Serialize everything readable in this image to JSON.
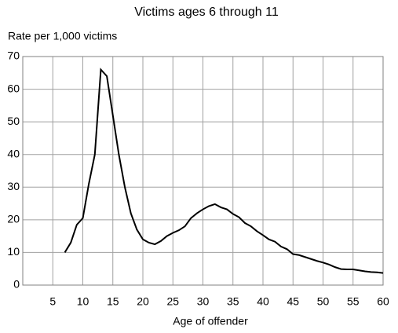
{
  "chart_data": {
    "type": "line",
    "title": "Victims ages 6 through 11",
    "y_label": "Rate per 1,000 victims",
    "x_label": "Age of offender",
    "series": [
      {
        "color": "#000000",
        "x": [
          7,
          8,
          9,
          10,
          11,
          12,
          13,
          14,
          15,
          16,
          17,
          18,
          19,
          20,
          21,
          22,
          23,
          24,
          25,
          26,
          27,
          28,
          29,
          30,
          31,
          32,
          33,
          34,
          35,
          36,
          37,
          38,
          39,
          40,
          41,
          42,
          43,
          44,
          45,
          46,
          47,
          48,
          49,
          50,
          51,
          52,
          53,
          54,
          55,
          56,
          57,
          58,
          59,
          60
        ],
        "values": [
          10,
          13,
          18.5,
          20.5,
          31,
          40,
          66,
          64,
          52,
          40,
          30,
          22,
          17,
          14,
          13,
          12.5,
          13.5,
          15,
          16,
          16.8,
          18,
          20.5,
          22,
          23.2,
          24.2,
          24.8,
          23.8,
          23.2,
          21.8,
          20.8,
          19,
          18,
          16.5,
          15.3,
          14,
          13.3,
          11.8,
          11,
          9.5,
          9.2,
          8.6,
          8,
          7.4,
          6.9,
          6.3,
          5.5,
          4.9,
          4.8,
          4.8,
          4.5,
          4.2,
          4,
          3.9,
          3.7
        ]
      }
    ],
    "xlim": [
      0,
      60
    ],
    "xticks": [
      5,
      10,
      15,
      20,
      25,
      30,
      35,
      40,
      45,
      50,
      55,
      60
    ],
    "ylim": [
      0,
      70
    ],
    "yticks": [
      0,
      10,
      20,
      30,
      40,
      50,
      60,
      70
    ],
    "grid": true
  }
}
